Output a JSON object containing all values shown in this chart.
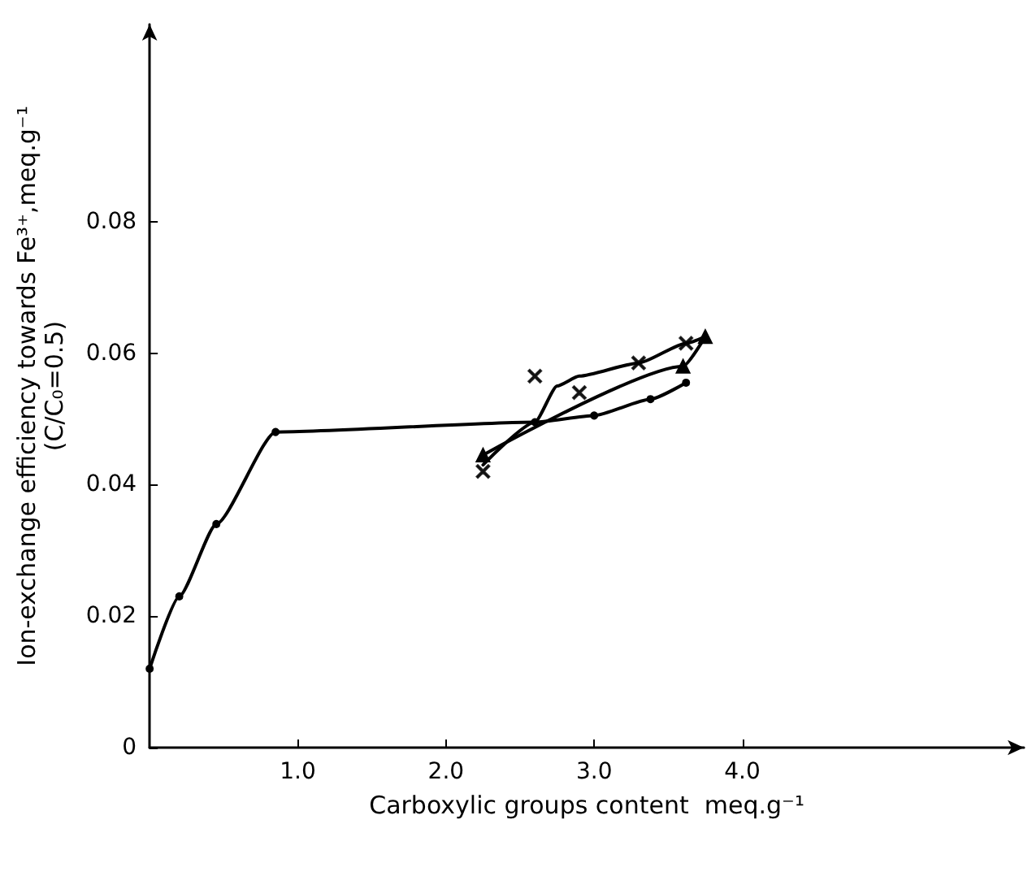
{
  "chart_data": {
    "type": "line",
    "xlabel": "Carboxylic groups content  meq.g⁻¹",
    "ylabel": "Ion-exchange efficiency towards Fe³⁺,meq.g⁻¹\n(C/C₀=0.5)",
    "xlim": [
      0,
      5.9
    ],
    "ylim": [
      0,
      0.11
    ],
    "xticks": [
      {
        "value": 1,
        "label": "1.0"
      },
      {
        "value": 2,
        "label": "2.0"
      },
      {
        "value": 3,
        "label": "3.0"
      },
      {
        "value": 4,
        "label": "4.0"
      }
    ],
    "yticks": [
      0,
      0.02,
      0.04,
      0.06,
      0.08
    ],
    "grid": false,
    "line_style": "solid",
    "series": [
      {
        "marker": "circle",
        "color": "#000000",
        "x": [
          0,
          0.2,
          0.45,
          0.85,
          2.6,
          3.0,
          3.38,
          3.62
        ],
        "values": [
          0.012,
          0.023,
          0.034,
          0.048,
          0.0495,
          0.0505,
          0.053,
          0.0555
        ]
      },
      {
        "marker": "triangle",
        "color": "#000000",
        "x": [
          2.25,
          3.6,
          3.75
        ],
        "values": [
          0.0445,
          0.058,
          0.0625
        ]
      },
      {
        "marker": "none",
        "color": "#000000",
        "x": [
          2.25,
          2.6,
          2.75,
          2.9,
          3.3,
          3.62,
          3.75
        ],
        "values": [
          0.043,
          0.0495,
          0.055,
          0.0565,
          0.0585,
          0.0615,
          0.0625
        ]
      },
      {
        "type": "scatter",
        "marker": "cross",
        "color": "#000000",
        "x": [
          2.25,
          2.6,
          2.9,
          3.3,
          3.62
        ],
        "values": [
          0.042,
          0.0565,
          0.054,
          0.0585,
          0.0615
        ]
      }
    ]
  }
}
